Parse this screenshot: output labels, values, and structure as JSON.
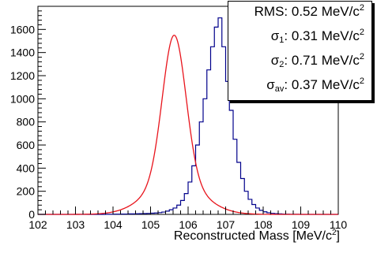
{
  "chart_data": {
    "type": "histogram",
    "x_label_prefix": "Reconstructed Mass [MeV/c",
    "x_label_sup": "2",
    "x_label_suffix": "]",
    "xlim": [
      102,
      110
    ],
    "ylim": [
      0,
      1800
    ],
    "x_ticks": [
      "102",
      "103",
      "104",
      "105",
      "106",
      "107",
      "108",
      "109",
      "110"
    ],
    "y_ticks": [
      "0",
      "200",
      "400",
      "600",
      "800",
      "1000",
      "1200",
      "1400",
      "1600"
    ],
    "x_tick_values": [
      102,
      103,
      104,
      105,
      106,
      107,
      108,
      109,
      110
    ],
    "y_tick_values": [
      0,
      200,
      400,
      600,
      800,
      1000,
      1200,
      1400,
      1600
    ],
    "bin_width": 0.1,
    "bin_start": 102.0,
    "histogram_color": "#00008b",
    "fit_color": "#e8141c",
    "histogram_counts": [
      0,
      0,
      0,
      0,
      0,
      0,
      0,
      0,
      0,
      0,
      0,
      0,
      0,
      0,
      0,
      0,
      0,
      0,
      1,
      1,
      2,
      2,
      3,
      3,
      4,
      4,
      5,
      6,
      7,
      8,
      10,
      12,
      15,
      20,
      28,
      40,
      55,
      80,
      120,
      180,
      280,
      420,
      600,
      800,
      1000,
      1250,
      1450,
      1620,
      1700,
      1450,
      1150,
      900,
      650,
      450,
      310,
      200,
      130,
      85,
      55,
      35,
      22,
      14,
      9,
      6,
      4,
      3,
      2,
      1,
      1,
      1,
      0,
      0,
      0,
      0,
      0,
      0,
      0,
      0,
      0,
      0
    ],
    "fit": {
      "mean": 105.63,
      "components": [
        {
          "amplitude": 1250,
          "sigma": 0.31
        },
        {
          "amplitude": 300,
          "sigma": 0.71
        }
      ]
    },
    "stats": [
      {
        "label": "RMS",
        "sub": "",
        "value": "0.52",
        "unit": "MeV/c",
        "unit_sup": "2"
      },
      {
        "label": "σ",
        "sub": "1",
        "value": "0.31",
        "unit": "MeV/c",
        "unit_sup": "2"
      },
      {
        "label": "σ",
        "sub": "2",
        "value": "0.71",
        "unit": "MeV/c",
        "unit_sup": "2"
      },
      {
        "label": "σ",
        "sub": "av",
        "value": "0.37",
        "unit": "MeV/c",
        "unit_sup": "2"
      }
    ]
  }
}
